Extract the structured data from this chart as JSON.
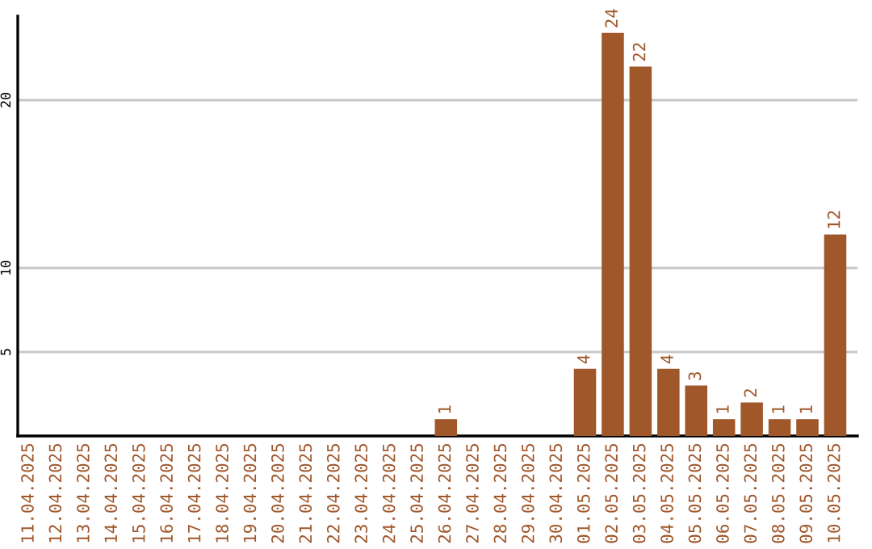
{
  "chart_data": {
    "type": "bar",
    "categories": [
      "11.04.2025",
      "12.04.2025",
      "13.04.2025",
      "14.04.2025",
      "15.04.2025",
      "16.04.2025",
      "17.04.2025",
      "18.04.2025",
      "19.04.2025",
      "20.04.2025",
      "21.04.2025",
      "22.04.2025",
      "23.04.2025",
      "24.04.2025",
      "25.04.2025",
      "26.04.2025",
      "27.04.2025",
      "28.04.2025",
      "29.04.2025",
      "30.04.2025",
      "01.05.2025",
      "02.05.2025",
      "03.05.2025",
      "04.05.2025",
      "05.05.2025",
      "06.05.2025",
      "07.05.2025",
      "08.05.2025",
      "09.05.2025",
      "10.05.2025"
    ],
    "values": [
      0,
      0,
      0,
      0,
      0,
      0,
      0,
      0,
      0,
      0,
      0,
      0,
      0,
      0,
      0,
      1,
      0,
      0,
      0,
      0,
      4,
      24,
      22,
      4,
      3,
      1,
      2,
      1,
      1,
      12
    ],
    "value_labels": [
      null,
      null,
      null,
      null,
      null,
      null,
      null,
      null,
      null,
      null,
      null,
      null,
      null,
      null,
      null,
      "1",
      null,
      null,
      null,
      null,
      "4",
      "24",
      "22",
      "4",
      "3",
      "1",
      "2",
      "1",
      "1",
      "12"
    ],
    "color": "#a0572a",
    "ylim": [
      0,
      25
    ],
    "yticks": [
      5,
      10,
      20
    ],
    "grid": "y"
  }
}
